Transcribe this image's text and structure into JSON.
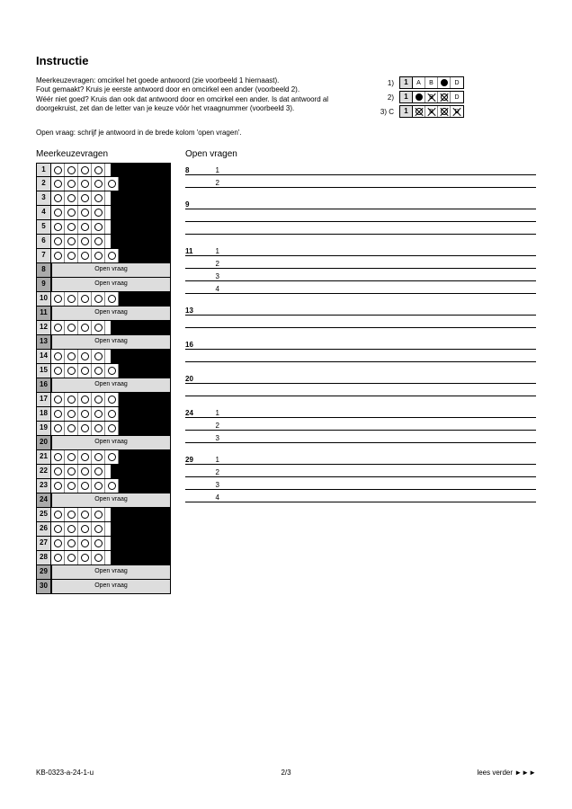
{
  "instruct": {
    "title": "Instructie",
    "p1": "Meerkeuzevragen: omcirkel het goede antwoord (zie voorbeeld 1 hiernaast).",
    "p2": "Fout gemaakt? Kruis je eerste antwoord door en omcirkel een ander (voorbeeld 2).",
    "p3": "Wéér niet goed? Kruis dan ook dat antwoord door en omcirkel een ander. Is dat antwoord al doorgekruist, zet dan de letter van je keuze vóór het vraagnummer (voorbeeld 3).",
    "ex1_num": "1)",
    "ex2_num": "2)",
    "ex3_num": "3) C",
    "ex_cellnum": "1",
    "lA": "A",
    "lB": "B",
    "lC": "C",
    "lD": "D",
    "note": "Open vraag: schrijf je antwoord in de brede kolom 'open vragen'."
  },
  "mc": {
    "title": "Meerkeuzevragen",
    "open_label": "Open vraag",
    "rows": [
      {
        "n": "1",
        "opts": 4,
        "shaded": false,
        "open": false
      },
      {
        "n": "2",
        "opts": 5,
        "shaded": false,
        "open": false
      },
      {
        "n": "3",
        "opts": 4,
        "shaded": false,
        "open": false
      },
      {
        "n": "4",
        "opts": 4,
        "shaded": false,
        "open": false
      },
      {
        "n": "5",
        "opts": 4,
        "shaded": false,
        "open": false
      },
      {
        "n": "6",
        "opts": 4,
        "shaded": false,
        "open": false
      },
      {
        "n": "7",
        "opts": 5,
        "shaded": false,
        "open": false
      },
      {
        "n": "8",
        "opts": 0,
        "shaded": true,
        "open": true
      },
      {
        "n": "9",
        "opts": 0,
        "shaded": true,
        "open": true
      },
      {
        "n": "10",
        "opts": 5,
        "shaded": false,
        "open": false
      },
      {
        "n": "11",
        "opts": 0,
        "shaded": true,
        "open": true
      },
      {
        "n": "12",
        "opts": 4,
        "shaded": false,
        "open": false
      },
      {
        "n": "13",
        "opts": 0,
        "shaded": true,
        "open": true
      },
      {
        "n": "14",
        "opts": 4,
        "shaded": false,
        "open": false
      },
      {
        "n": "15",
        "opts": 5,
        "shaded": false,
        "open": false
      },
      {
        "n": "16",
        "opts": 0,
        "shaded": true,
        "open": true
      },
      {
        "n": "17",
        "opts": 5,
        "shaded": false,
        "open": false
      },
      {
        "n": "18",
        "opts": 5,
        "shaded": false,
        "open": false
      },
      {
        "n": "19",
        "opts": 5,
        "shaded": false,
        "open": false
      },
      {
        "n": "20",
        "opts": 0,
        "shaded": true,
        "open": true
      },
      {
        "n": "21",
        "opts": 5,
        "shaded": false,
        "open": false
      },
      {
        "n": "22",
        "opts": 4,
        "shaded": false,
        "open": false
      },
      {
        "n": "23",
        "opts": 5,
        "shaded": false,
        "open": false
      },
      {
        "n": "24",
        "opts": 0,
        "shaded": true,
        "open": true
      },
      {
        "n": "25",
        "opts": 4,
        "shaded": false,
        "open": false
      },
      {
        "n": "26",
        "opts": 4,
        "shaded": false,
        "open": false
      },
      {
        "n": "27",
        "opts": 4,
        "shaded": false,
        "open": false
      },
      {
        "n": "28",
        "opts": 4,
        "shaded": false,
        "open": false
      },
      {
        "n": "29",
        "opts": 0,
        "shaded": true,
        "open": true
      },
      {
        "n": "30",
        "opts": 0,
        "shaded": true,
        "open": true
      }
    ]
  },
  "open": {
    "title": "Open vragen",
    "groups": [
      {
        "q": "8",
        "lines": [
          "1",
          "2"
        ]
      },
      {
        "q": "9",
        "lines": [
          "",
          "",
          ""
        ]
      },
      {
        "q": "11",
        "lines": [
          "1",
          "2",
          "3",
          "4"
        ]
      },
      {
        "q": "13",
        "lines": [
          "",
          ""
        ]
      },
      {
        "q": "16",
        "lines": [
          "",
          ""
        ]
      },
      {
        "q": "20",
        "lines": [
          "",
          ""
        ]
      },
      {
        "q": "24",
        "lines": [
          "1",
          "2",
          "3"
        ]
      },
      {
        "q": "29",
        "lines": [
          "1",
          "2",
          "3",
          "4"
        ]
      }
    ]
  },
  "footer": {
    "left": "KB-0323-a-24-1-u",
    "center": "2/3",
    "right": "lees verder ►►►"
  }
}
